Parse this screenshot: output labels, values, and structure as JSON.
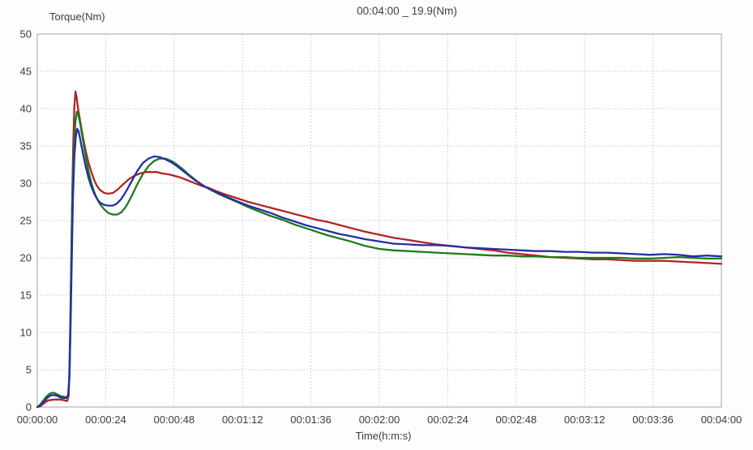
{
  "chart_data": {
    "type": "line",
    "title": "00:04:00 _ 19.9(Nm)",
    "ylabel": "Torque(Nm)",
    "xlabel": "Time(h:m:s)",
    "xlim_seconds": [
      0,
      240
    ],
    "ylim": [
      0,
      50
    ],
    "grid": true,
    "legend": "none",
    "y_ticks": [
      0,
      5,
      10,
      15,
      20,
      25,
      30,
      35,
      40,
      45,
      50
    ],
    "x_ticks": [
      {
        "s": 0,
        "label": "00:00:00"
      },
      {
        "s": 24,
        "label": "00:00:24"
      },
      {
        "s": 48,
        "label": "00:00:48"
      },
      {
        "s": 72,
        "label": "00:01:12"
      },
      {
        "s": 96,
        "label": "00:01:36"
      },
      {
        "s": 120,
        "label": "00:02:00"
      },
      {
        "s": 144,
        "label": "00:02:24"
      },
      {
        "s": 168,
        "label": "00:02:48"
      },
      {
        "s": 192,
        "label": "00:03:12"
      },
      {
        "s": 216,
        "label": "00:03:36"
      },
      {
        "s": 240,
        "label": "00:04:00"
      }
    ],
    "colors": {
      "grid": "#c3c3c3",
      "border": "#b3b3b3",
      "text": "#3c3c3c"
    },
    "series": [
      {
        "name": "torque-red",
        "color": "#b12425",
        "points": [
          [
            0,
            0
          ],
          [
            1,
            0.1
          ],
          [
            2,
            0.4
          ],
          [
            3,
            0.7
          ],
          [
            4,
            0.9
          ],
          [
            6,
            1.0
          ],
          [
            8,
            1.0
          ],
          [
            9.5,
            0.9
          ],
          [
            10.5,
            0.8
          ],
          [
            11.0,
            1.5
          ],
          [
            11.4,
            6
          ],
          [
            11.8,
            16
          ],
          [
            12.2,
            27
          ],
          [
            12.6,
            35
          ],
          [
            13.0,
            40.2
          ],
          [
            13.4,
            42.3
          ],
          [
            13.8,
            41.5
          ],
          [
            14.3,
            40.0
          ],
          [
            15,
            38.4
          ],
          [
            16,
            36.2
          ],
          [
            17,
            34.3
          ],
          [
            18,
            32.7
          ],
          [
            19,
            31.5
          ],
          [
            20,
            30.4
          ],
          [
            21,
            29.6
          ],
          [
            22,
            29.1
          ],
          [
            23.5,
            28.7
          ],
          [
            25,
            28.6
          ],
          [
            26.5,
            28.7
          ],
          [
            28,
            29.1
          ],
          [
            30,
            29.8
          ],
          [
            32,
            30.5
          ],
          [
            34,
            31.0
          ],
          [
            36,
            31.3
          ],
          [
            38,
            31.5
          ],
          [
            40,
            31.5
          ],
          [
            42,
            31.5
          ],
          [
            44,
            31.3
          ],
          [
            46,
            31.2
          ],
          [
            48,
            31.0
          ],
          [
            50,
            30.8
          ],
          [
            52,
            30.5
          ],
          [
            54,
            30.2
          ],
          [
            56,
            29.9
          ],
          [
            58,
            29.6
          ],
          [
            60,
            29.4
          ],
          [
            63,
            28.9
          ],
          [
            66,
            28.5
          ],
          [
            70,
            28.0
          ],
          [
            74,
            27.5
          ],
          [
            78,
            27.1
          ],
          [
            82,
            26.7
          ],
          [
            86,
            26.3
          ],
          [
            90,
            25.9
          ],
          [
            94,
            25.5
          ],
          [
            98,
            25.1
          ],
          [
            102,
            24.8
          ],
          [
            106,
            24.4
          ],
          [
            110,
            24.0
          ],
          [
            115,
            23.5
          ],
          [
            120,
            23.1
          ],
          [
            125,
            22.7
          ],
          [
            130,
            22.4
          ],
          [
            135,
            22.1
          ],
          [
            140,
            21.8
          ],
          [
            145,
            21.6
          ],
          [
            150,
            21.4
          ],
          [
            155,
            21.2
          ],
          [
            160,
            21.0
          ],
          [
            165,
            20.7
          ],
          [
            170,
            20.5
          ],
          [
            175,
            20.3
          ],
          [
            180,
            20.1
          ],
          [
            185,
            20.0
          ],
          [
            190,
            19.9
          ],
          [
            195,
            19.8
          ],
          [
            200,
            19.8
          ],
          [
            205,
            19.7
          ],
          [
            210,
            19.6
          ],
          [
            215,
            19.6
          ],
          [
            220,
            19.6
          ],
          [
            225,
            19.5
          ],
          [
            230,
            19.4
          ],
          [
            235,
            19.3
          ],
          [
            240,
            19.2
          ]
        ]
      },
      {
        "name": "torque-green",
        "color": "#1d7a1d",
        "points": [
          [
            0,
            0
          ],
          [
            1,
            0.3
          ],
          [
            2,
            0.8
          ],
          [
            3,
            1.3
          ],
          [
            4,
            1.7
          ],
          [
            5,
            1.9
          ],
          [
            6,
            1.9
          ],
          [
            7,
            1.7
          ],
          [
            8,
            1.5
          ],
          [
            9,
            1.4
          ],
          [
            10,
            1.3
          ],
          [
            10.8,
            1.5
          ],
          [
            11.2,
            4
          ],
          [
            11.6,
            12
          ],
          [
            12.0,
            22
          ],
          [
            12.4,
            30
          ],
          [
            12.9,
            35
          ],
          [
            13.4,
            38.3
          ],
          [
            13.9,
            39.6
          ],
          [
            14.4,
            39.2
          ],
          [
            15,
            38.1
          ],
          [
            16,
            35.8
          ],
          [
            17,
            33.5
          ],
          [
            18,
            31.6
          ],
          [
            19,
            30.0
          ],
          [
            20,
            28.8
          ],
          [
            21,
            27.9
          ],
          [
            22,
            27.2
          ],
          [
            23.5,
            26.5
          ],
          [
            25,
            26.0
          ],
          [
            26.5,
            25.8
          ],
          [
            28,
            25.8
          ],
          [
            29.5,
            26.1
          ],
          [
            31,
            26.8
          ],
          [
            33,
            28.2
          ],
          [
            35,
            29.8
          ],
          [
            37,
            31.2
          ],
          [
            39,
            32.3
          ],
          [
            41,
            33.0
          ],
          [
            43,
            33.3
          ],
          [
            45,
            33.3
          ],
          [
            47,
            33.0
          ],
          [
            49,
            32.5
          ],
          [
            51,
            31.9
          ],
          [
            53,
            31.2
          ],
          [
            55,
            30.6
          ],
          [
            57,
            30.0
          ],
          [
            59,
            29.5
          ],
          [
            61,
            29.1
          ],
          [
            64,
            28.5
          ],
          [
            67,
            28.0
          ],
          [
            70,
            27.5
          ],
          [
            74,
            26.8
          ],
          [
            78,
            26.2
          ],
          [
            82,
            25.6
          ],
          [
            86,
            25.1
          ],
          [
            90,
            24.5
          ],
          [
            94,
            24.0
          ],
          [
            98,
            23.5
          ],
          [
            102,
            23.0
          ],
          [
            106,
            22.6
          ],
          [
            110,
            22.2
          ],
          [
            115,
            21.6
          ],
          [
            120,
            21.2
          ],
          [
            125,
            21.0
          ],
          [
            130,
            20.9
          ],
          [
            135,
            20.8
          ],
          [
            140,
            20.7
          ],
          [
            145,
            20.6
          ],
          [
            150,
            20.5
          ],
          [
            155,
            20.4
          ],
          [
            160,
            20.3
          ],
          [
            165,
            20.3
          ],
          [
            170,
            20.2
          ],
          [
            175,
            20.2
          ],
          [
            180,
            20.1
          ],
          [
            185,
            20.1
          ],
          [
            190,
            20.0
          ],
          [
            195,
            20.0
          ],
          [
            200,
            20.0
          ],
          [
            205,
            20.0
          ],
          [
            210,
            19.9
          ],
          [
            215,
            19.9
          ],
          [
            220,
            20.0
          ],
          [
            225,
            20.1
          ],
          [
            230,
            20.0
          ],
          [
            235,
            19.9
          ],
          [
            240,
            19.9
          ]
        ]
      },
      {
        "name": "torque-blue",
        "color": "#2330a6",
        "points": [
          [
            0,
            0
          ],
          [
            1,
            0.2
          ],
          [
            2,
            0.6
          ],
          [
            3,
            1.0
          ],
          [
            4,
            1.4
          ],
          [
            5,
            1.6
          ],
          [
            6,
            1.6
          ],
          [
            7,
            1.5
          ],
          [
            8,
            1.3
          ],
          [
            9,
            1.2
          ],
          [
            10,
            1.2
          ],
          [
            10.9,
            1.6
          ],
          [
            11.3,
            4
          ],
          [
            11.7,
            11
          ],
          [
            12.1,
            20
          ],
          [
            12.5,
            28
          ],
          [
            13.0,
            33.5
          ],
          [
            13.5,
            36.2
          ],
          [
            14.0,
            37.3
          ],
          [
            14.5,
            37.0
          ],
          [
            15.2,
            35.6
          ],
          [
            16,
            34.0
          ],
          [
            17,
            32.2
          ],
          [
            18,
            30.7
          ],
          [
            19,
            29.5
          ],
          [
            20,
            28.6
          ],
          [
            21,
            27.9
          ],
          [
            22,
            27.4
          ],
          [
            23.5,
            27.1
          ],
          [
            25,
            27.0
          ],
          [
            26.5,
            27.0
          ],
          [
            28,
            27.3
          ],
          [
            29.5,
            27.9
          ],
          [
            31,
            28.8
          ],
          [
            33,
            30.2
          ],
          [
            35,
            31.6
          ],
          [
            37,
            32.7
          ],
          [
            39,
            33.3
          ],
          [
            41,
            33.6
          ],
          [
            43,
            33.5
          ],
          [
            45,
            33.2
          ],
          [
            47,
            32.8
          ],
          [
            49,
            32.3
          ],
          [
            51,
            31.7
          ],
          [
            53,
            31.1
          ],
          [
            55,
            30.5
          ],
          [
            57,
            30.0
          ],
          [
            59,
            29.5
          ],
          [
            61,
            29.1
          ],
          [
            64,
            28.6
          ],
          [
            67,
            28.1
          ],
          [
            70,
            27.6
          ],
          [
            74,
            27.0
          ],
          [
            78,
            26.5
          ],
          [
            82,
            26.0
          ],
          [
            86,
            25.4
          ],
          [
            90,
            24.9
          ],
          [
            94,
            24.4
          ],
          [
            98,
            24.0
          ],
          [
            102,
            23.6
          ],
          [
            106,
            23.2
          ],
          [
            110,
            22.9
          ],
          [
            115,
            22.5
          ],
          [
            120,
            22.2
          ],
          [
            125,
            21.9
          ],
          [
            130,
            21.8
          ],
          [
            135,
            21.7
          ],
          [
            140,
            21.7
          ],
          [
            145,
            21.6
          ],
          [
            150,
            21.4
          ],
          [
            155,
            21.3
          ],
          [
            160,
            21.2
          ],
          [
            165,
            21.1
          ],
          [
            170,
            21.0
          ],
          [
            175,
            20.9
          ],
          [
            180,
            20.9
          ],
          [
            185,
            20.8
          ],
          [
            190,
            20.8
          ],
          [
            195,
            20.7
          ],
          [
            200,
            20.7
          ],
          [
            205,
            20.6
          ],
          [
            210,
            20.5
          ],
          [
            215,
            20.4
          ],
          [
            220,
            20.5
          ],
          [
            225,
            20.4
          ],
          [
            230,
            20.2
          ],
          [
            235,
            20.3
          ],
          [
            240,
            20.2
          ]
        ]
      }
    ]
  }
}
